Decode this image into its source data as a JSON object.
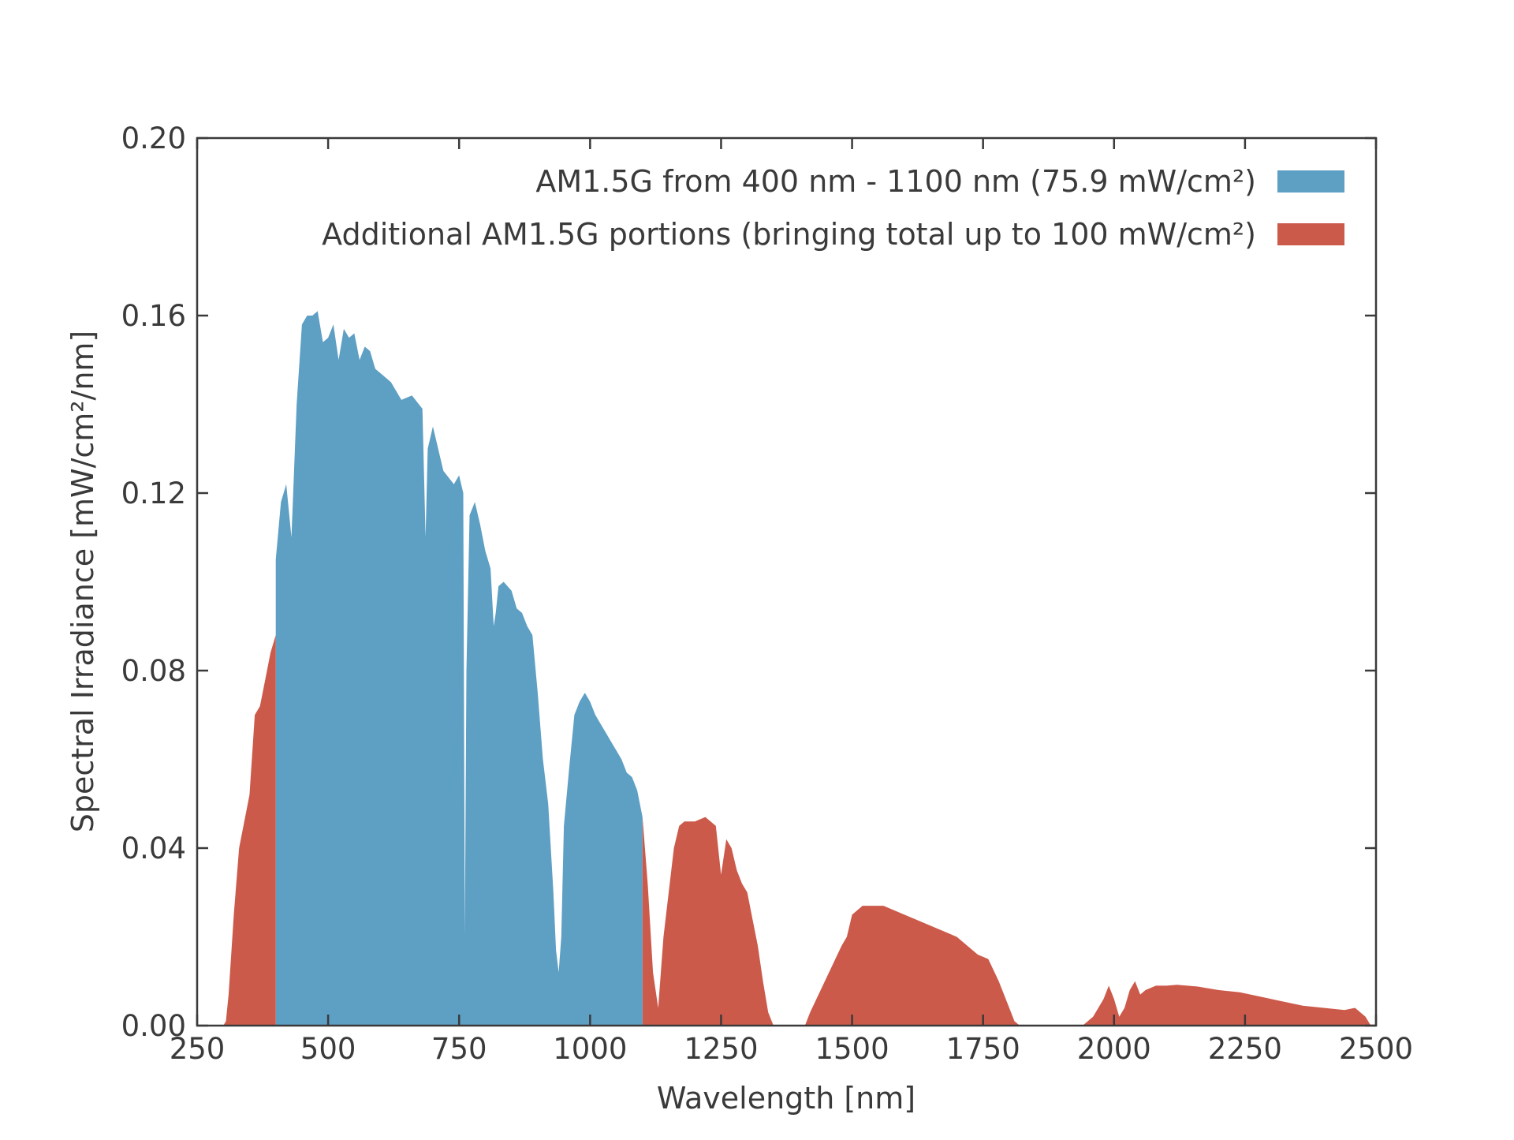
{
  "chart_data": {
    "type": "area",
    "title": "",
    "xlabel": "Wavelength [nm]",
    "ylabel": "Spectral Irradiance [mW/cm²/nm]",
    "xlim": [
      250,
      2500
    ],
    "ylim": [
      0,
      0.2
    ],
    "x_ticks": [
      250,
      500,
      750,
      1000,
      1250,
      1500,
      1750,
      2000,
      2250,
      2500
    ],
    "x_tick_labels": [
      "250",
      "500",
      "750",
      "1000",
      "1250",
      "1500",
      "1750",
      "2000",
      "2250",
      "2500"
    ],
    "y_ticks": [
      0,
      0.04,
      0.08,
      0.12,
      0.16,
      0.2
    ],
    "y_tick_labels": [
      "0.00",
      "0.04",
      "0.08",
      "0.12",
      "0.16",
      "0.20"
    ],
    "legend_position": "top-right",
    "grid": false,
    "series": [
      {
        "name": "AM1.5G from 400 nm - 1100 nm (75.9 mW/cm²)",
        "color": "#5e9fc4",
        "x": [
          400,
          410,
          420,
          430,
          440,
          450,
          460,
          470,
          480,
          490,
          500,
          510,
          520,
          530,
          540,
          550,
          560,
          570,
          580,
          590,
          600,
          620,
          640,
          660,
          680,
          686,
          690,
          700,
          720,
          740,
          750,
          758,
          761,
          764,
          770,
          780,
          790,
          800,
          810,
          816,
          820,
          825,
          835,
          850,
          860,
          870,
          880,
          890,
          900,
          910,
          920,
          930,
          935,
          940,
          945,
          950,
          960,
          970,
          980,
          990,
          1000,
          1010,
          1020,
          1030,
          1040,
          1050,
          1060,
          1070,
          1080,
          1090,
          1100
        ],
        "y": [
          0.105,
          0.118,
          0.122,
          0.11,
          0.14,
          0.158,
          0.16,
          0.16,
          0.161,
          0.154,
          0.155,
          0.158,
          0.15,
          0.157,
          0.155,
          0.156,
          0.15,
          0.153,
          0.152,
          0.148,
          0.147,
          0.145,
          0.141,
          0.142,
          0.139,
          0.11,
          0.13,
          0.135,
          0.125,
          0.122,
          0.124,
          0.12,
          0.02,
          0.08,
          0.115,
          0.118,
          0.113,
          0.107,
          0.103,
          0.09,
          0.093,
          0.099,
          0.1,
          0.098,
          0.094,
          0.093,
          0.09,
          0.088,
          0.075,
          0.06,
          0.05,
          0.03,
          0.017,
          0.012,
          0.02,
          0.045,
          0.058,
          0.07,
          0.073,
          0.075,
          0.073,
          0.07,
          0.068,
          0.066,
          0.064,
          0.062,
          0.06,
          0.057,
          0.056,
          0.053,
          0.047
        ]
      },
      {
        "name": "Additional AM1.5G portions (bringing total up to 100 mW/cm²)",
        "color": "#cc5a4b",
        "segments": [
          {
            "x": [
              300,
              305,
              310,
              320,
              330,
              340,
              350,
              360,
              370,
              380,
              390,
              400
            ],
            "y": [
              0,
              0.001,
              0.007,
              0.025,
              0.04,
              0.046,
              0.052,
              0.07,
              0.072,
              0.078,
              0.084,
              0.088
            ]
          },
          {
            "x": [
              1100,
              1110,
              1120,
              1130,
              1140,
              1150,
              1160,
              1170,
              1180,
              1200,
              1220,
              1240,
              1250,
              1260,
              1270,
              1280,
              1290,
              1300,
              1310,
              1320,
              1330,
              1340,
              1350
            ],
            "y": [
              0.047,
              0.032,
              0.012,
              0.004,
              0.02,
              0.03,
              0.04,
              0.045,
              0.046,
              0.046,
              0.047,
              0.045,
              0.034,
              0.042,
              0.04,
              0.035,
              0.032,
              0.03,
              0.024,
              0.018,
              0.01,
              0.003,
              0
            ]
          },
          {
            "x": [
              1410,
              1420,
              1440,
              1460,
              1480,
              1490,
              1500,
              1520,
              1540,
              1560,
              1580,
              1600,
              1640,
              1680,
              1700,
              1720,
              1740,
              1760,
              1780,
              1800,
              1810,
              1820
            ],
            "y": [
              0,
              0.003,
              0.008,
              0.013,
              0.018,
              0.02,
              0.025,
              0.027,
              0.027,
              0.027,
              0.026,
              0.025,
              0.023,
              0.021,
              0.02,
              0.018,
              0.016,
              0.015,
              0.01,
              0.004,
              0.001,
              0
            ]
          },
          {
            "x": [
              1940,
              1960,
              1980,
              1990,
              2000,
              2010,
              2020,
              2030,
              2040,
              2050,
              2060,
              2080,
              2100,
              2120,
              2140,
              2160,
              2200,
              2240,
              2280,
              2320,
              2360,
              2400,
              2440,
              2460,
              2480,
              2490
            ],
            "y": [
              0,
              0.002,
              0.006,
              0.009,
              0.006,
              0.002,
              0.004,
              0.008,
              0.01,
              0.007,
              0.008,
              0.009,
              0.009,
              0.0092,
              0.009,
              0.0088,
              0.008,
              0.0075,
              0.0065,
              0.0055,
              0.0045,
              0.004,
              0.0035,
              0.004,
              0.002,
              0
            ]
          }
        ]
      }
    ]
  }
}
